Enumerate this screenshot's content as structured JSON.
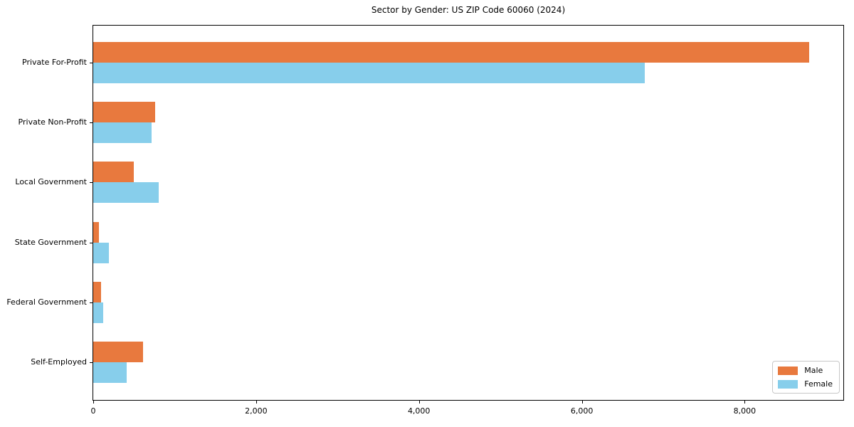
{
  "chart_data": {
    "type": "bar",
    "orientation": "horizontal",
    "title": "Sector by Gender: US ZIP Code 60060 (2024)",
    "categories": [
      "Private For-Profit",
      "Private Non-Profit",
      "Local Government",
      "State Government",
      "Federal Government",
      "Self-Employed"
    ],
    "series": [
      {
        "name": "Male",
        "color": "#e8793e",
        "values": [
          8790,
          760,
          500,
          70,
          100,
          615
        ]
      },
      {
        "name": "Female",
        "color": "#87ceeb",
        "values": [
          6770,
          720,
          800,
          190,
          120,
          410
        ]
      }
    ],
    "xlim": [
      0,
      9220
    ],
    "x_ticks": [
      0,
      2000,
      4000,
      6000,
      8000
    ],
    "x_tick_labels": [
      "0",
      "2,000",
      "4,000",
      "6,000",
      "8,000"
    ],
    "xlabel": "",
    "ylabel": "",
    "grid": false,
    "legend": {
      "position": "lower right",
      "entries": [
        "Male",
        "Female"
      ]
    },
    "colors": {
      "spine": "#000000",
      "text": "#000000",
      "legend_border": "#c8c8c8"
    }
  }
}
